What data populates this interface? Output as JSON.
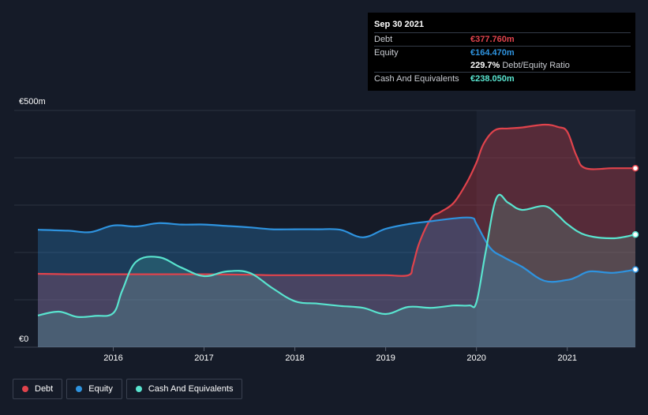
{
  "chart_data": {
    "type": "area",
    "currency": "€",
    "ylim": [
      0,
      500
    ],
    "y_ticks": [
      {
        "value": 500,
        "label": "€500m"
      },
      {
        "value": 0,
        "label": "€0"
      }
    ],
    "x_range": [
      2015.17,
      2021.75
    ],
    "x_ticks": [
      {
        "value": 2016,
        "label": "2016"
      },
      {
        "value": 2017,
        "label": "2017"
      },
      {
        "value": 2018,
        "label": "2018"
      },
      {
        "value": 2019,
        "label": "2019"
      },
      {
        "value": 2020,
        "label": "2020"
      },
      {
        "value": 2021,
        "label": "2021"
      }
    ],
    "series": [
      {
        "name": "Debt",
        "color": "#e0434c",
        "points": [
          [
            2015.17,
            155
          ],
          [
            2015.5,
            154
          ],
          [
            2016.0,
            154
          ],
          [
            2016.5,
            154
          ],
          [
            2017.0,
            154
          ],
          [
            2017.5,
            153
          ],
          [
            2017.75,
            152
          ],
          [
            2018.25,
            152
          ],
          [
            2018.75,
            152
          ],
          [
            2019.0,
            152
          ],
          [
            2019.25,
            152
          ],
          [
            2019.3,
            172
          ],
          [
            2019.37,
            220
          ],
          [
            2019.5,
            272
          ],
          [
            2019.6,
            285
          ],
          [
            2019.75,
            305
          ],
          [
            2019.9,
            350
          ],
          [
            2020.0,
            390
          ],
          [
            2020.08,
            430
          ],
          [
            2020.2,
            458
          ],
          [
            2020.35,
            462
          ],
          [
            2020.5,
            464
          ],
          [
            2020.75,
            470
          ],
          [
            2020.9,
            465
          ],
          [
            2021.0,
            455
          ],
          [
            2021.1,
            405
          ],
          [
            2021.2,
            378
          ],
          [
            2021.5,
            378
          ],
          [
            2021.75,
            378
          ]
        ]
      },
      {
        "name": "Equity",
        "color": "#2e93df",
        "points": [
          [
            2015.17,
            248
          ],
          [
            2015.5,
            246
          ],
          [
            2015.75,
            243
          ],
          [
            2016.0,
            257
          ],
          [
            2016.25,
            255
          ],
          [
            2016.5,
            262
          ],
          [
            2016.75,
            259
          ],
          [
            2017.0,
            259
          ],
          [
            2017.25,
            256
          ],
          [
            2017.5,
            253
          ],
          [
            2017.75,
            249
          ],
          [
            2018.0,
            249
          ],
          [
            2018.25,
            249
          ],
          [
            2018.5,
            248
          ],
          [
            2018.75,
            232
          ],
          [
            2019.0,
            250
          ],
          [
            2019.25,
            260
          ],
          [
            2019.5,
            266
          ],
          [
            2019.75,
            272
          ],
          [
            2019.95,
            273
          ],
          [
            2020.0,
            260
          ],
          [
            2020.15,
            210
          ],
          [
            2020.3,
            190
          ],
          [
            2020.5,
            170
          ],
          [
            2020.75,
            140
          ],
          [
            2021.0,
            142
          ],
          [
            2021.1,
            148
          ],
          [
            2021.25,
            160
          ],
          [
            2021.5,
            157
          ],
          [
            2021.75,
            164
          ]
        ]
      },
      {
        "name": "Cash And Equivalents",
        "color": "#59e4cf",
        "points": [
          [
            2015.17,
            67
          ],
          [
            2015.4,
            75
          ],
          [
            2015.6,
            64
          ],
          [
            2015.8,
            66
          ],
          [
            2016.0,
            72
          ],
          [
            2016.1,
            120
          ],
          [
            2016.25,
            180
          ],
          [
            2016.5,
            190
          ],
          [
            2016.75,
            168
          ],
          [
            2017.0,
            150
          ],
          [
            2017.25,
            160
          ],
          [
            2017.5,
            157
          ],
          [
            2017.75,
            125
          ],
          [
            2018.0,
            97
          ],
          [
            2018.25,
            92
          ],
          [
            2018.5,
            87
          ],
          [
            2018.75,
            83
          ],
          [
            2019.0,
            70
          ],
          [
            2019.25,
            85
          ],
          [
            2019.5,
            83
          ],
          [
            2019.75,
            88
          ],
          [
            2019.92,
            88
          ],
          [
            2020.0,
            95
          ],
          [
            2020.1,
            200
          ],
          [
            2020.22,
            315
          ],
          [
            2020.35,
            305
          ],
          [
            2020.5,
            290
          ],
          [
            2020.75,
            298
          ],
          [
            2020.9,
            278
          ],
          [
            2021.0,
            260
          ],
          [
            2021.2,
            237
          ],
          [
            2021.5,
            230
          ],
          [
            2021.75,
            238
          ]
        ]
      }
    ],
    "tooltip": {
      "date": "Sep 30 2021",
      "rows": [
        {
          "label": "Debt",
          "value": "€377.760m",
          "color": "#e0434c"
        },
        {
          "label": "Equity",
          "value": "€164.470m",
          "color": "#2e93df"
        },
        {
          "label": "",
          "value": "229.7%",
          "extra": "Debt/Equity Ratio",
          "color": "#ffffff"
        },
        {
          "label": "Cash And Equivalents",
          "value": "€238.050m",
          "color": "#59e4cf"
        }
      ]
    },
    "legend": [
      {
        "label": "Debt",
        "color": "#e0434c"
      },
      {
        "label": "Equity",
        "color": "#2e93df"
      },
      {
        "label": "Cash And Equivalents",
        "color": "#59e4cf"
      }
    ]
  }
}
